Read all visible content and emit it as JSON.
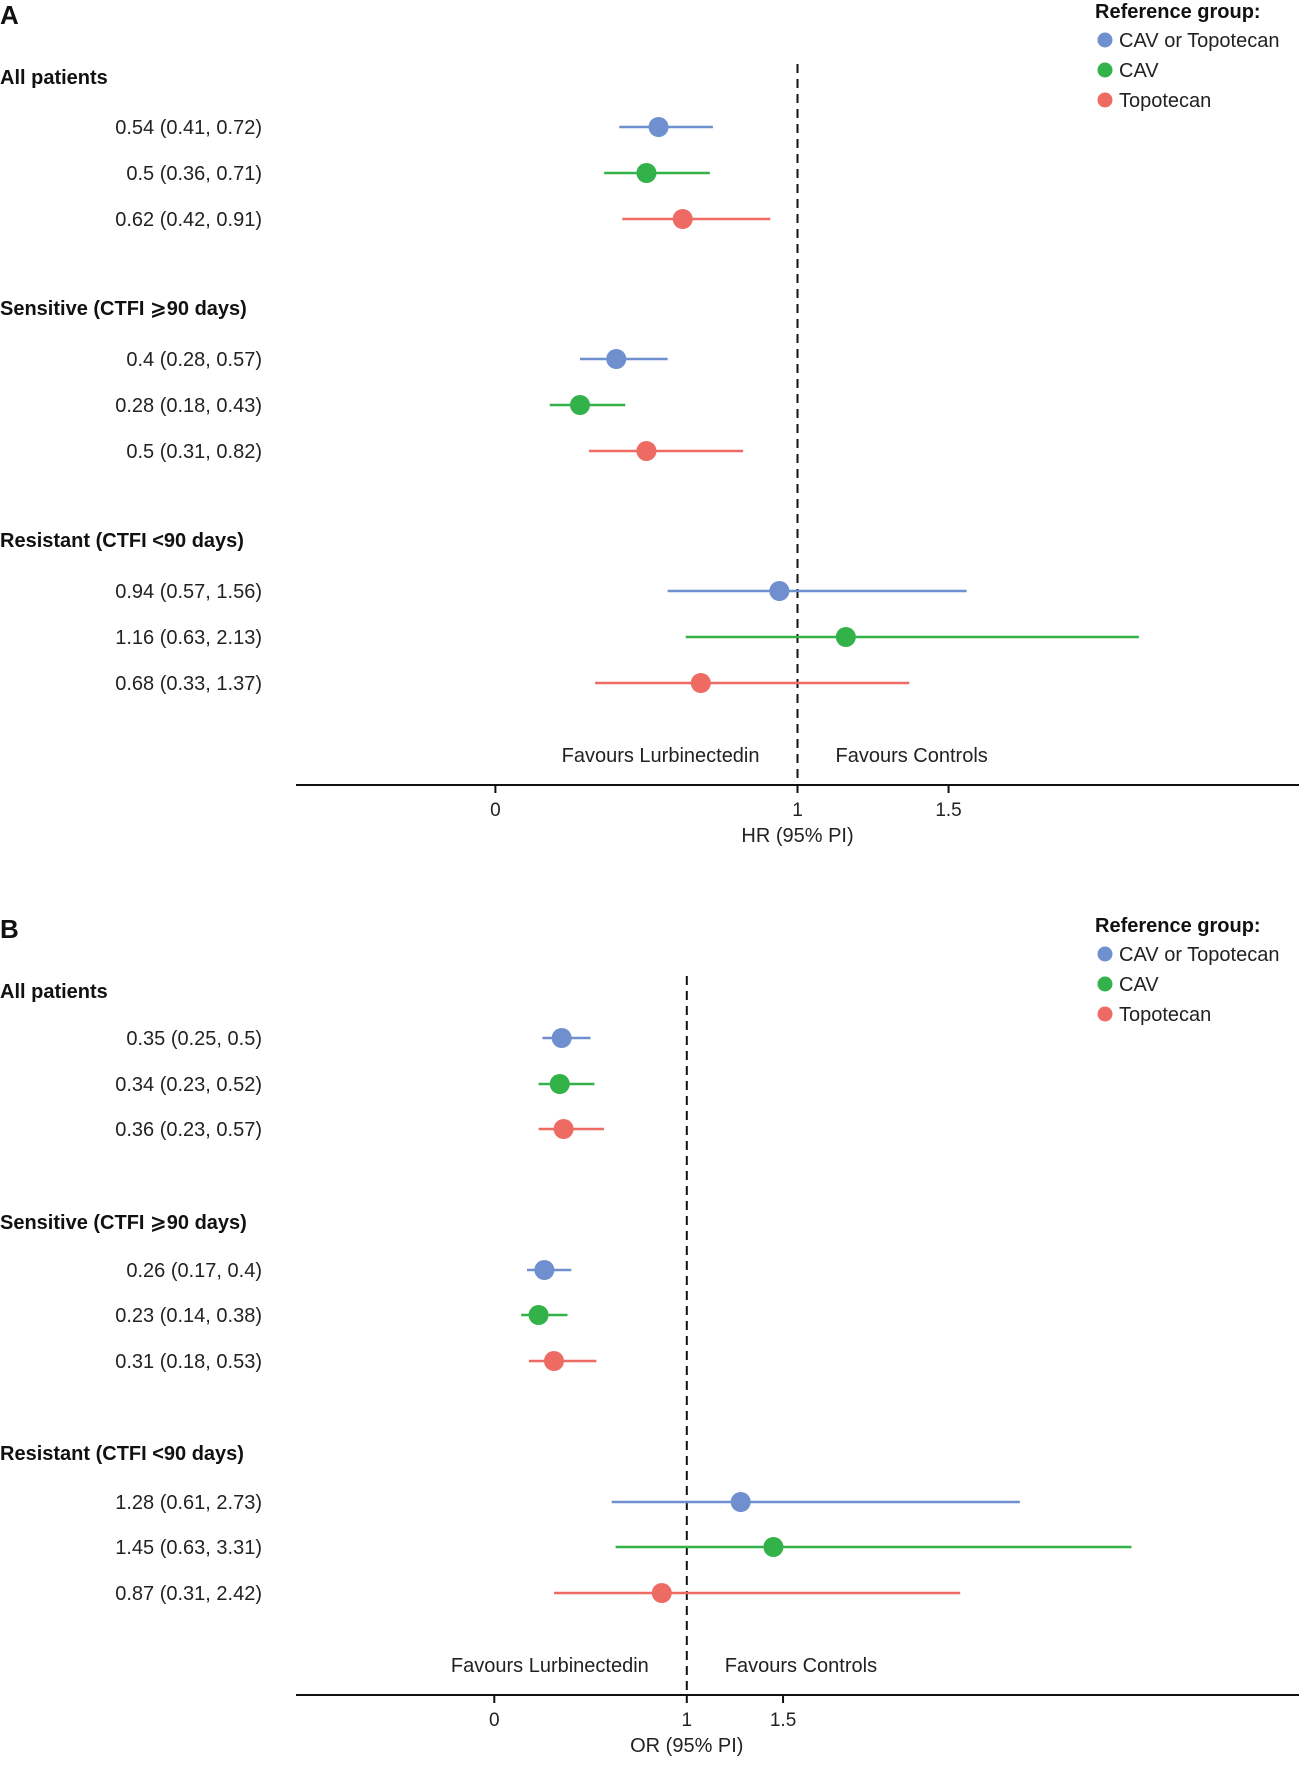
{
  "chart_data": [
    {
      "type": "forest",
      "panel_label": "A",
      "xlabel": "HR (95% PI)",
      "xlim": [
        -0.66,
        2.66
      ],
      "xticks": [
        {
          "value": 0,
          "label": "0"
        },
        {
          "value": 1,
          "label": "1"
        },
        {
          "value": 1.5,
          "label": "1.5"
        }
      ],
      "reference_value": 1,
      "favours_left": "Favours Lurbinectedin",
      "favours_right": "Favours Controls",
      "legend": {
        "title": "Reference group:",
        "position": "top-right",
        "entries": [
          {
            "name": "CAV or Topotecan",
            "color": "#6f8fce"
          },
          {
            "name": "CAV",
            "color": "#33b24a"
          },
          {
            "name": "Topotecan",
            "color": "#ee6b64"
          }
        ]
      },
      "groups": [
        {
          "title": "All patients",
          "rows": [
            {
              "label": "0.54 (0.41, 0.72)",
              "series": "CAV or Topotecan",
              "estimate": 0.54,
              "lower": 0.41,
              "upper": 0.72
            },
            {
              "label": "0.5 (0.36, 0.71)",
              "series": "CAV",
              "estimate": 0.5,
              "lower": 0.36,
              "upper": 0.71
            },
            {
              "label": "0.62 (0.42, 0.91)",
              "series": "Topotecan",
              "estimate": 0.62,
              "lower": 0.42,
              "upper": 0.91
            }
          ]
        },
        {
          "title": "Sensitive (CTFI ⩾90 days)",
          "rows": [
            {
              "label": "0.4 (0.28, 0.57)",
              "series": "CAV or Topotecan",
              "estimate": 0.4,
              "lower": 0.28,
              "upper": 0.57
            },
            {
              "label": "0.28 (0.18, 0.43)",
              "series": "CAV",
              "estimate": 0.28,
              "lower": 0.18,
              "upper": 0.43
            },
            {
              "label": "0.5 (0.31, 0.82)",
              "series": "Topotecan",
              "estimate": 0.5,
              "lower": 0.31,
              "upper": 0.82
            }
          ]
        },
        {
          "title": "Resistant (CTFI <90 days)",
          "rows": [
            {
              "label": "0.94 (0.57, 1.56)",
              "series": "CAV or Topotecan",
              "estimate": 0.94,
              "lower": 0.57,
              "upper": 1.56
            },
            {
              "label": "1.16 (0.63, 2.13)",
              "series": "CAV",
              "estimate": 1.16,
              "lower": 0.63,
              "upper": 2.13
            },
            {
              "label": "0.68 (0.33, 1.37)",
              "series": "Topotecan",
              "estimate": 0.68,
              "lower": 0.33,
              "upper": 1.37
            }
          ]
        }
      ]
    },
    {
      "type": "forest",
      "panel_label": "B",
      "xlabel": "OR (95% PI)",
      "xlim": [
        -1.03,
        4.18
      ],
      "xticks": [
        {
          "value": 0,
          "label": "0"
        },
        {
          "value": 1,
          "label": "1"
        },
        {
          "value": 1.5,
          "label": "1.5"
        }
      ],
      "reference_value": 1,
      "favours_left": "Favours Lurbinectedin",
      "favours_right": "Favours Controls",
      "legend": {
        "title": "Reference group:",
        "position": "top-right",
        "entries": [
          {
            "name": "CAV or Topotecan",
            "color": "#6f8fce"
          },
          {
            "name": "CAV",
            "color": "#33b24a"
          },
          {
            "name": "Topotecan",
            "color": "#ee6b64"
          }
        ]
      },
      "groups": [
        {
          "title": "All patients",
          "rows": [
            {
              "label": "0.35 (0.25, 0.5)",
              "series": "CAV or Topotecan",
              "estimate": 0.35,
              "lower": 0.25,
              "upper": 0.5
            },
            {
              "label": "0.34 (0.23, 0.52)",
              "series": "CAV",
              "estimate": 0.34,
              "lower": 0.23,
              "upper": 0.52
            },
            {
              "label": "0.36 (0.23, 0.57)",
              "series": "Topotecan",
              "estimate": 0.36,
              "lower": 0.23,
              "upper": 0.57
            }
          ]
        },
        {
          "title": "Sensitive (CTFI ⩾90 days)",
          "rows": [
            {
              "label": "0.26 (0.17, 0.4)",
              "series": "CAV or Topotecan",
              "estimate": 0.26,
              "lower": 0.17,
              "upper": 0.4
            },
            {
              "label": "0.23 (0.14, 0.38)",
              "series": "CAV",
              "estimate": 0.23,
              "lower": 0.14,
              "upper": 0.38
            },
            {
              "label": "0.31 (0.18, 0.53)",
              "series": "Topotecan",
              "estimate": 0.31,
              "lower": 0.18,
              "upper": 0.53
            }
          ]
        },
        {
          "title": "Resistant (CTFI <90 days)",
          "rows": [
            {
              "label": "1.28 (0.61, 2.73)",
              "series": "CAV or Topotecan",
              "estimate": 1.28,
              "lower": 0.61,
              "upper": 2.73
            },
            {
              "label": "1.45 (0.63, 3.31)",
              "series": "CAV",
              "estimate": 1.45,
              "lower": 0.63,
              "upper": 3.31
            },
            {
              "label": "0.87 (0.31, 2.42)",
              "series": "Topotecan",
              "estimate": 0.87,
              "lower": 0.31,
              "upper": 2.42
            }
          ]
        }
      ]
    }
  ]
}
